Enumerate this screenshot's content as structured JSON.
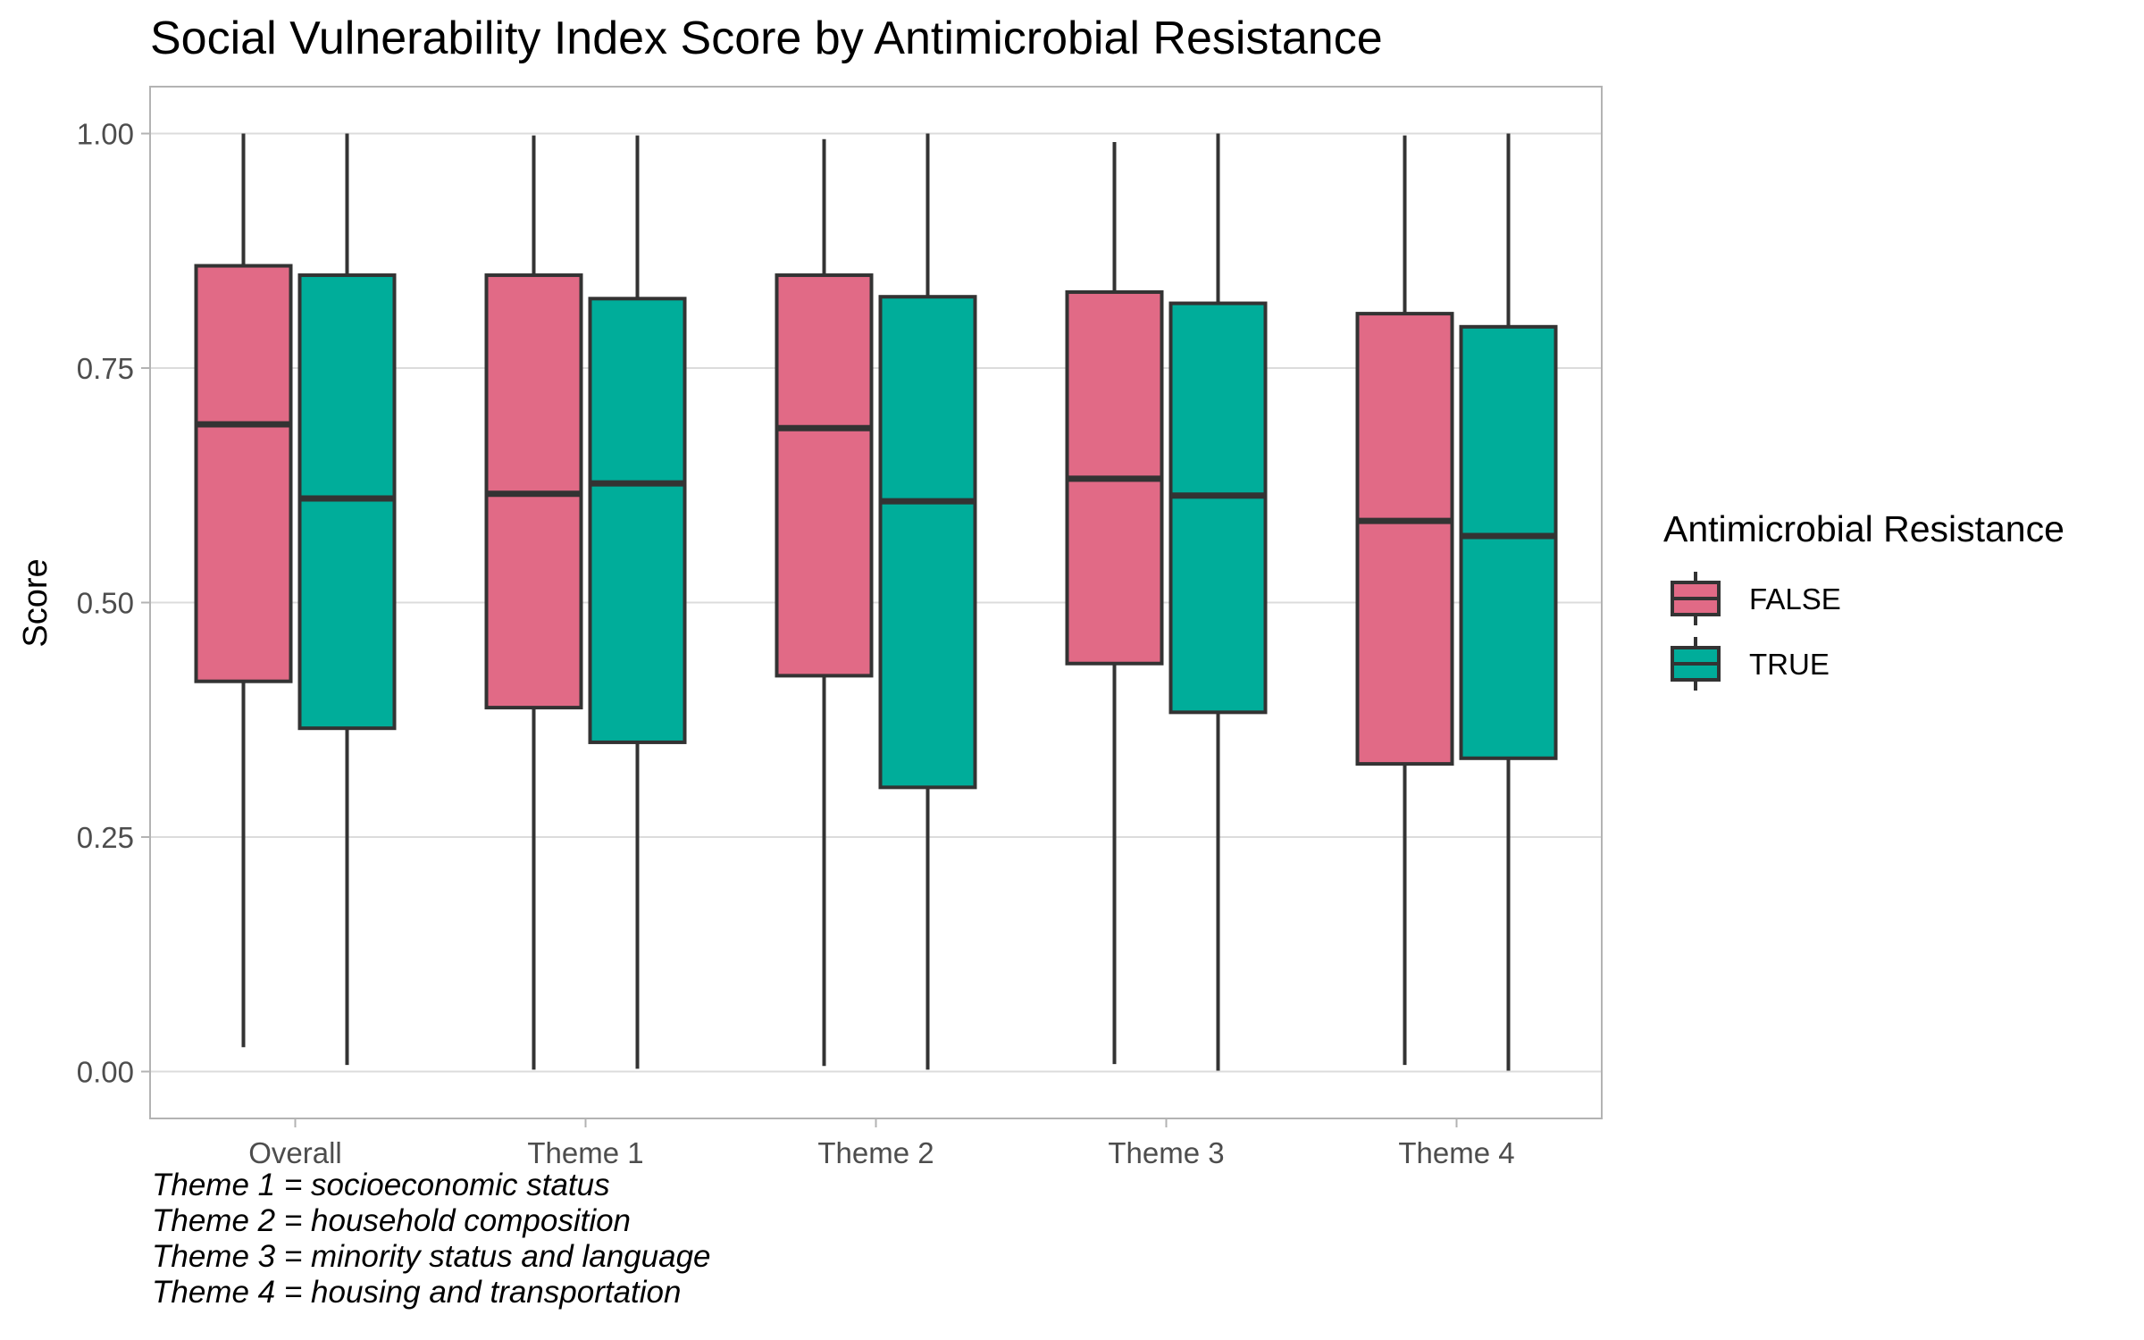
{
  "chart_data": {
    "type": "boxplot",
    "title": "Social Vulnerability Index Score by Antimicrobial Resistance",
    "ylabel": "Score",
    "xlabel": "",
    "ylim": [
      -0.05,
      1.05
    ],
    "yticks": [
      0.0,
      0.25,
      0.5,
      0.75,
      1.0
    ],
    "ytick_labels": [
      "0.00",
      "0.25",
      "0.50",
      "0.75",
      "1.00"
    ],
    "grid": true,
    "categories": [
      "Overall",
      "Theme 1",
      "Theme 2",
      "Theme 3",
      "Theme 4"
    ],
    "legend": {
      "title": "Antimicrobial Resistance",
      "position": "right"
    },
    "series": [
      {
        "name": "FALSE",
        "color": "#E16A86",
        "boxes": [
          {
            "min": 0.026,
            "q1": 0.416,
            "median": 0.69,
            "q3": 0.859,
            "max": 1.0
          },
          {
            "min": 0.002,
            "q1": 0.388,
            "median": 0.616,
            "q3": 0.849,
            "max": 0.998
          },
          {
            "min": 0.006,
            "q1": 0.422,
            "median": 0.686,
            "q3": 0.849,
            "max": 0.994
          },
          {
            "min": 0.008,
            "q1": 0.435,
            "median": 0.632,
            "q3": 0.831,
            "max": 0.991
          },
          {
            "min": 0.007,
            "q1": 0.328,
            "median": 0.587,
            "q3": 0.808,
            "max": 0.998
          }
        ]
      },
      {
        "name": "TRUE",
        "color": "#00AD9A",
        "boxes": [
          {
            "min": 0.007,
            "q1": 0.366,
            "median": 0.611,
            "q3": 0.849,
            "max": 1.0
          },
          {
            "min": 0.003,
            "q1": 0.351,
            "median": 0.627,
            "q3": 0.824,
            "max": 0.998
          },
          {
            "min": 0.002,
            "q1": 0.303,
            "median": 0.608,
            "q3": 0.826,
            "max": 1.0
          },
          {
            "min": 0.001,
            "q1": 0.383,
            "median": 0.614,
            "q3": 0.819,
            "max": 1.0
          },
          {
            "min": 0.001,
            "q1": 0.334,
            "median": 0.571,
            "q3": 0.794,
            "max": 1.0
          }
        ]
      }
    ]
  },
  "caption": [
    "Theme 1 = socioeconomic status",
    "Theme 2 = household composition",
    "Theme 3 = minority status and language",
    "Theme 4 = housing and transportation"
  ],
  "colors": {
    "outline": "#333333",
    "grid": "#dcdcdc",
    "panel_border": "#b3b3b3"
  }
}
